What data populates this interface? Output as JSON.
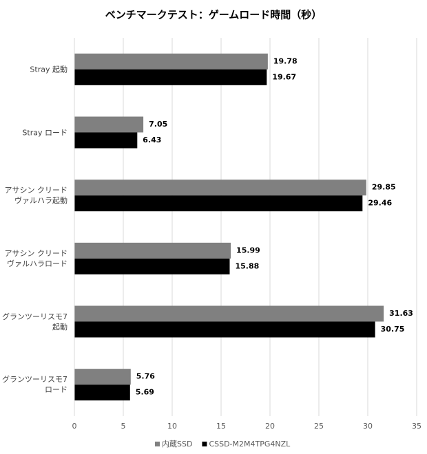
{
  "chart_data": {
    "type": "hbar",
    "title": "ベンチマークテスト：ゲームロード時間（秒）",
    "categories": [
      "Stray 起動",
      "Stray ロード",
      "アサシン クリード\nヴァルハラ起動",
      "アサシン クリード\nヴァルハラロード",
      "グランツーリスモ7\n起動",
      "グランツーリスモ7\nロード"
    ],
    "series": [
      {
        "name": "内蔵SSD",
        "color": "#808080",
        "values": [
          19.78,
          7.05,
          29.85,
          15.99,
          31.63,
          5.76
        ]
      },
      {
        "name": "CSSD-M2M4TPG4NZL",
        "color": "#000000",
        "values": [
          19.67,
          6.43,
          29.46,
          15.88,
          30.75,
          5.69
        ]
      }
    ],
    "xlim": [
      0,
      35
    ],
    "xticks": [
      0,
      5,
      10,
      15,
      20,
      25,
      30,
      35
    ],
    "grid": true
  }
}
